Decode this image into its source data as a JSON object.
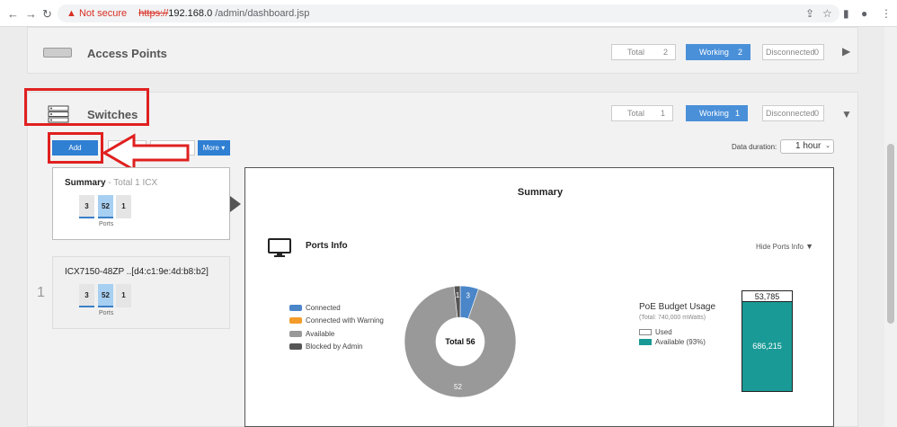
{
  "browser": {
    "security": "Not secure",
    "url_scheme": "https://",
    "url_host": "192.168.0",
    "url_path": " /admin/dashboard.jsp"
  },
  "access_points": {
    "title": "Access Points",
    "total_label": "Total",
    "total": "2",
    "working_label": "Working",
    "working": "2",
    "disconnected_label": "Disconnected",
    "disconnected": "0"
  },
  "switches": {
    "title": "Switches",
    "total_label": "Total",
    "total": "1",
    "working_label": "Working",
    "working": "1",
    "disconnected_label": "Disconnected",
    "disconnected": "0"
  },
  "toolbar": {
    "add_label": "Add",
    "remove_label": "move",
    "more_label": "More ▾",
    "duration_label": "Data duration:",
    "duration_value": "1 hour"
  },
  "summary_card": {
    "title": "Summary",
    "subtitle": " - Total 1 ICX",
    "ports": [
      "3",
      "52",
      "1"
    ],
    "ports_label": "Ports"
  },
  "device_card": {
    "index": "1",
    "name": "ICX7150-48ZP ..[d4:c1:9e:4d:b8:b2]",
    "ports": [
      "3",
      "52",
      "1"
    ],
    "ports_label": "Ports"
  },
  "summary_panel": {
    "title": "Summary",
    "ports_info_title": "Ports Info",
    "hide_label": "Hide Ports Info",
    "legend": [
      {
        "label": "Connected",
        "color": "#4a86c8"
      },
      {
        "label": "Connected with Warning",
        "color": "#f39c2b"
      },
      {
        "label": "Available",
        "color": "#999999"
      },
      {
        "label": "Blocked by Admin",
        "color": "#555555"
      }
    ],
    "donut_center": "Total 56",
    "poe_title": "PoE Budget Usage",
    "poe_total": "(Total: 740,000 mWatts)",
    "poe_used_label": "Used",
    "poe_available_label": "Available (93%)",
    "poe_used_value": "53,785",
    "poe_available_value": "686,215",
    "poe_color": "#1a9a96"
  },
  "chart_data": {
    "type": "pie",
    "categories": [
      "Connected",
      "Connected with Warning",
      "Available",
      "Blocked by Admin"
    ],
    "values": [
      3,
      0,
      52,
      1
    ],
    "donut_labels": [
      "3",
      "",
      "52",
      "1"
    ]
  }
}
